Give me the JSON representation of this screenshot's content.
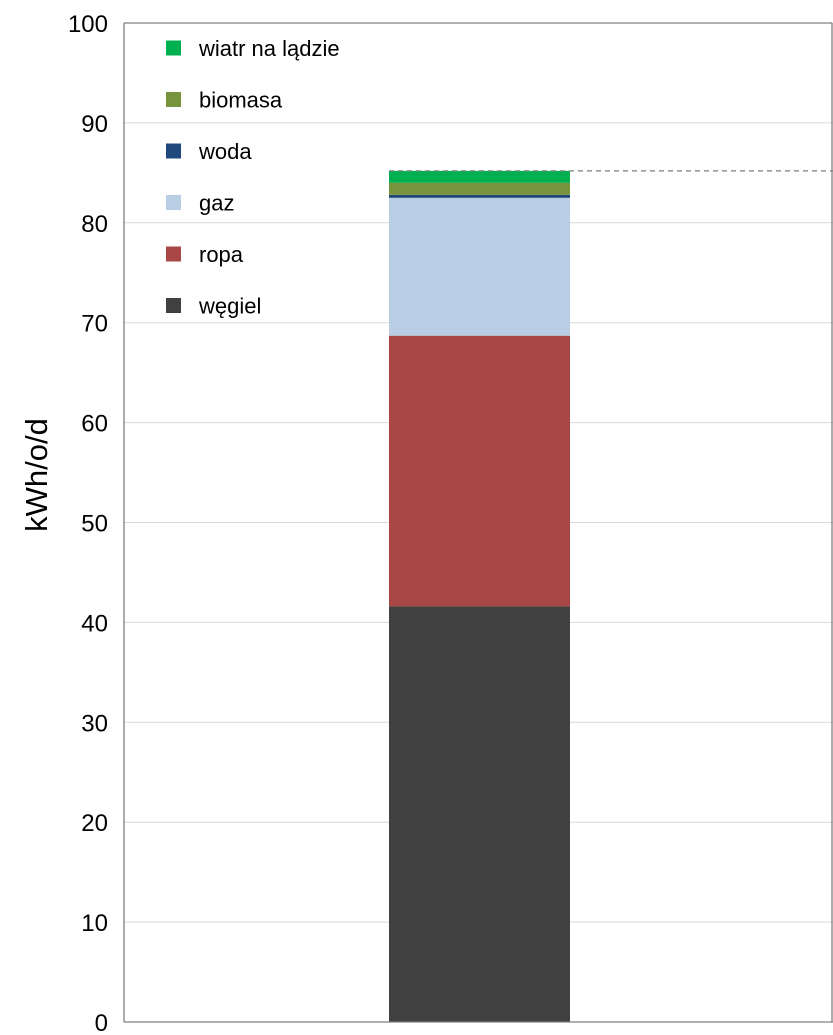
{
  "chart_data": {
    "type": "bar",
    "stacked": true,
    "ylabel": "kWh/o/d",
    "ylim": [
      0,
      100
    ],
    "yticks": [
      "0",
      "10",
      "20",
      "30",
      "40",
      "50",
      "60",
      "70",
      "80",
      "90",
      "100"
    ],
    "grid": true,
    "legend_position": "top-left",
    "reference_line": {
      "value": 85.2,
      "style": "dashed"
    },
    "series": [
      {
        "name": "węgiel",
        "value": 41.6,
        "color": "#404040"
      },
      {
        "name": "ropa",
        "value": 27.1,
        "color": "#a84746"
      },
      {
        "name": "gaz",
        "value": 13.8,
        "color": "#b9cde5"
      },
      {
        "name": "woda",
        "value": 0.3,
        "color": "#1f497d"
      },
      {
        "name": "biomasa",
        "value": 1.2,
        "color": "#77933c"
      },
      {
        "name": "wiatr na lądzie",
        "value": 1.2,
        "color": "#00b050"
      }
    ],
    "legend_order": [
      "wiatr na lądzie",
      "biomasa",
      "woda",
      "gaz",
      "ropa",
      "węgiel"
    ]
  }
}
